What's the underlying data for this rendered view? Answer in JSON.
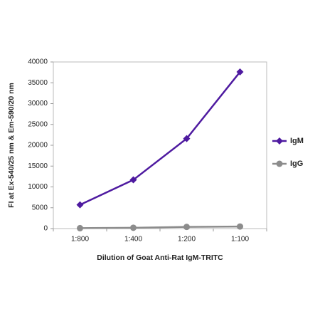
{
  "chart_data": {
    "type": "line",
    "x_label": "Dilution of Goat Anti-Rat IgM-TRITC",
    "y_label": "FI at Ex-540/25 nm & Em-590/20 nm",
    "categories": [
      "1:800",
      "1:400",
      "1:200",
      "1:100"
    ],
    "series": [
      {
        "name": "IgM",
        "color": "#4e1aa0",
        "marker": "diamond",
        "values": [
          5700,
          11700,
          21600,
          37600
        ]
      },
      {
        "name": "IgG",
        "color": "#8c8c8c",
        "marker": "circle",
        "values": [
          100,
          200,
          400,
          500
        ]
      }
    ],
    "ylim": [
      0,
      40000
    ],
    "yticks": [
      0,
      5000,
      10000,
      15000,
      20000,
      25000,
      30000,
      35000,
      40000
    ],
    "grid": false,
    "legend": "right"
  }
}
